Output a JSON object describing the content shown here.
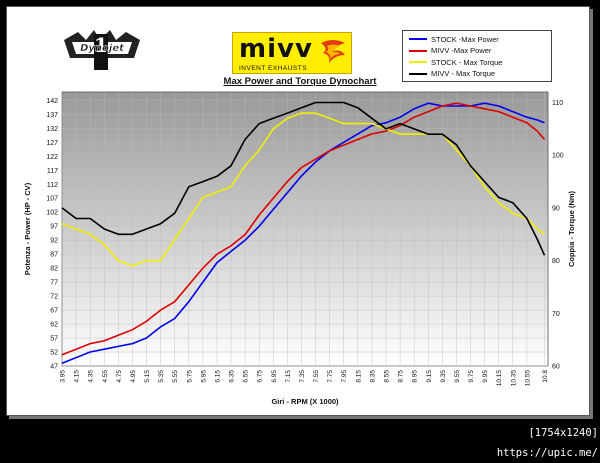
{
  "logos": {
    "dynojet_alt": "Dynojet",
    "mivv_word": "mivv",
    "mivv_tagline": "INVENT EXHAUSTS"
  },
  "footer": "[1754x1240] https://upic.me/",
  "chart_data": {
    "type": "line",
    "title": "Max Power and Torque Dynochart",
    "xlabel": "Giri - RPM (X 1000)",
    "ylabel": "Potenza - Power (HP - CV)",
    "y2label": "Coppia - Torque (Nm)",
    "xlim": [
      3.95,
      10.85
    ],
    "ylim": [
      47,
      145
    ],
    "y2lim": [
      60,
      112
    ],
    "x_ticks": [
      "3.95",
      "4.15",
      "4.35",
      "4.55",
      "4.75",
      "4.95",
      "5.15",
      "5.35",
      "5.55",
      "5.75",
      "5.95",
      "6.15",
      "6.35",
      "6.55",
      "6.75",
      "6.95",
      "7.15",
      "7.35",
      "7.55",
      "7.75",
      "7.95",
      "8.15",
      "8.35",
      "8.55",
      "8.75",
      "8.95",
      "9.15",
      "9.35",
      "9.55",
      "9.75",
      "9.95",
      "10.15",
      "10.35",
      "10.55",
      "10.8"
    ],
    "y_ticks": [
      47,
      52,
      57,
      62,
      67,
      72,
      77,
      82,
      87,
      92,
      97,
      102,
      107,
      112,
      117,
      122,
      127,
      132,
      137,
      142
    ],
    "y2_ticks": [
      60,
      70,
      80,
      90,
      100,
      110
    ],
    "grid": true,
    "legend_position": "top-right",
    "colors": {
      "stock_power": "#0000ee",
      "mivv_power": "#dd0000",
      "stock_torque": "#f2ee00",
      "mivv_torque": "#000000",
      "plot_bg_top": "#999999",
      "plot_bg_bottom": "#ffffff"
    },
    "series": [
      {
        "name": "STOCK -Max Power",
        "axis": "left",
        "color": "#0000ee",
        "x": [
          3.95,
          4.15,
          4.35,
          4.55,
          4.75,
          4.95,
          5.15,
          5.35,
          5.55,
          5.75,
          5.95,
          6.15,
          6.35,
          6.55,
          6.75,
          6.95,
          7.15,
          7.35,
          7.55,
          7.75,
          7.95,
          8.15,
          8.35,
          8.55,
          8.75,
          8.95,
          9.15,
          9.35,
          9.55,
          9.75,
          9.95,
          10.15,
          10.35,
          10.55,
          10.7,
          10.8
        ],
        "values": [
          48,
          50,
          52,
          53,
          54,
          55,
          57,
          61,
          64,
          70,
          77,
          84,
          88,
          92,
          97,
          103,
          109,
          115,
          120,
          124,
          127,
          130,
          133,
          134,
          136,
          139,
          141,
          140,
          140,
          140,
          141,
          140,
          138,
          136,
          135,
          134
        ]
      },
      {
        "name": "MIVV -Max Power",
        "axis": "left",
        "color": "#dd0000",
        "x": [
          3.95,
          4.15,
          4.35,
          4.55,
          4.75,
          4.95,
          5.15,
          5.35,
          5.55,
          5.75,
          5.95,
          6.15,
          6.35,
          6.55,
          6.75,
          6.95,
          7.15,
          7.35,
          7.55,
          7.75,
          7.95,
          8.15,
          8.35,
          8.55,
          8.75,
          8.95,
          9.15,
          9.35,
          9.55,
          9.75,
          9.95,
          10.15,
          10.35,
          10.55,
          10.7,
          10.8
        ],
        "values": [
          51,
          53,
          55,
          56,
          58,
          60,
          63,
          67,
          70,
          76,
          82,
          87,
          90,
          94,
          101,
          107,
          113,
          118,
          121,
          124,
          126,
          128,
          130,
          131,
          133,
          136,
          138,
          140,
          141,
          140,
          139,
          138,
          136,
          134,
          131,
          128
        ]
      },
      {
        "name": "STOCK - Max Torque",
        "axis": "right",
        "color": "#f2ee00",
        "x": [
          3.95,
          4.15,
          4.35,
          4.55,
          4.75,
          4.95,
          5.15,
          5.35,
          5.55,
          5.75,
          5.95,
          6.15,
          6.35,
          6.55,
          6.75,
          6.95,
          7.15,
          7.35,
          7.55,
          7.75,
          7.95,
          8.15,
          8.35,
          8.55,
          8.75,
          8.95,
          9.15,
          9.35,
          9.55,
          9.75,
          9.95,
          10.15,
          10.35,
          10.55,
          10.7,
          10.8
        ],
        "values": [
          87,
          86,
          85,
          83,
          80,
          79,
          80,
          80,
          84,
          88,
          92,
          93,
          94,
          98,
          101,
          105,
          107,
          108,
          108,
          107,
          106,
          106,
          106,
          105,
          104,
          104,
          104,
          104,
          101,
          98,
          94,
          91,
          89,
          88,
          86,
          85
        ]
      },
      {
        "name": "MIVV - Max Torque",
        "axis": "right",
        "color": "#000000",
        "x": [
          3.95,
          4.15,
          4.35,
          4.55,
          4.75,
          4.95,
          5.15,
          5.35,
          5.55,
          5.75,
          5.95,
          6.15,
          6.35,
          6.55,
          6.75,
          6.95,
          7.15,
          7.35,
          7.55,
          7.75,
          7.95,
          8.15,
          8.35,
          8.55,
          8.75,
          8.95,
          9.15,
          9.35,
          9.55,
          9.75,
          9.95,
          10.15,
          10.35,
          10.55,
          10.7,
          10.8
        ],
        "values": [
          90,
          88,
          88,
          86,
          85,
          85,
          86,
          87,
          89,
          94,
          95,
          96,
          98,
          103,
          106,
          107,
          108,
          109,
          110,
          110,
          110,
          109,
          107,
          105,
          106,
          105,
          104,
          104,
          102,
          98,
          95,
          92,
          91,
          88,
          84,
          81
        ]
      }
    ]
  }
}
